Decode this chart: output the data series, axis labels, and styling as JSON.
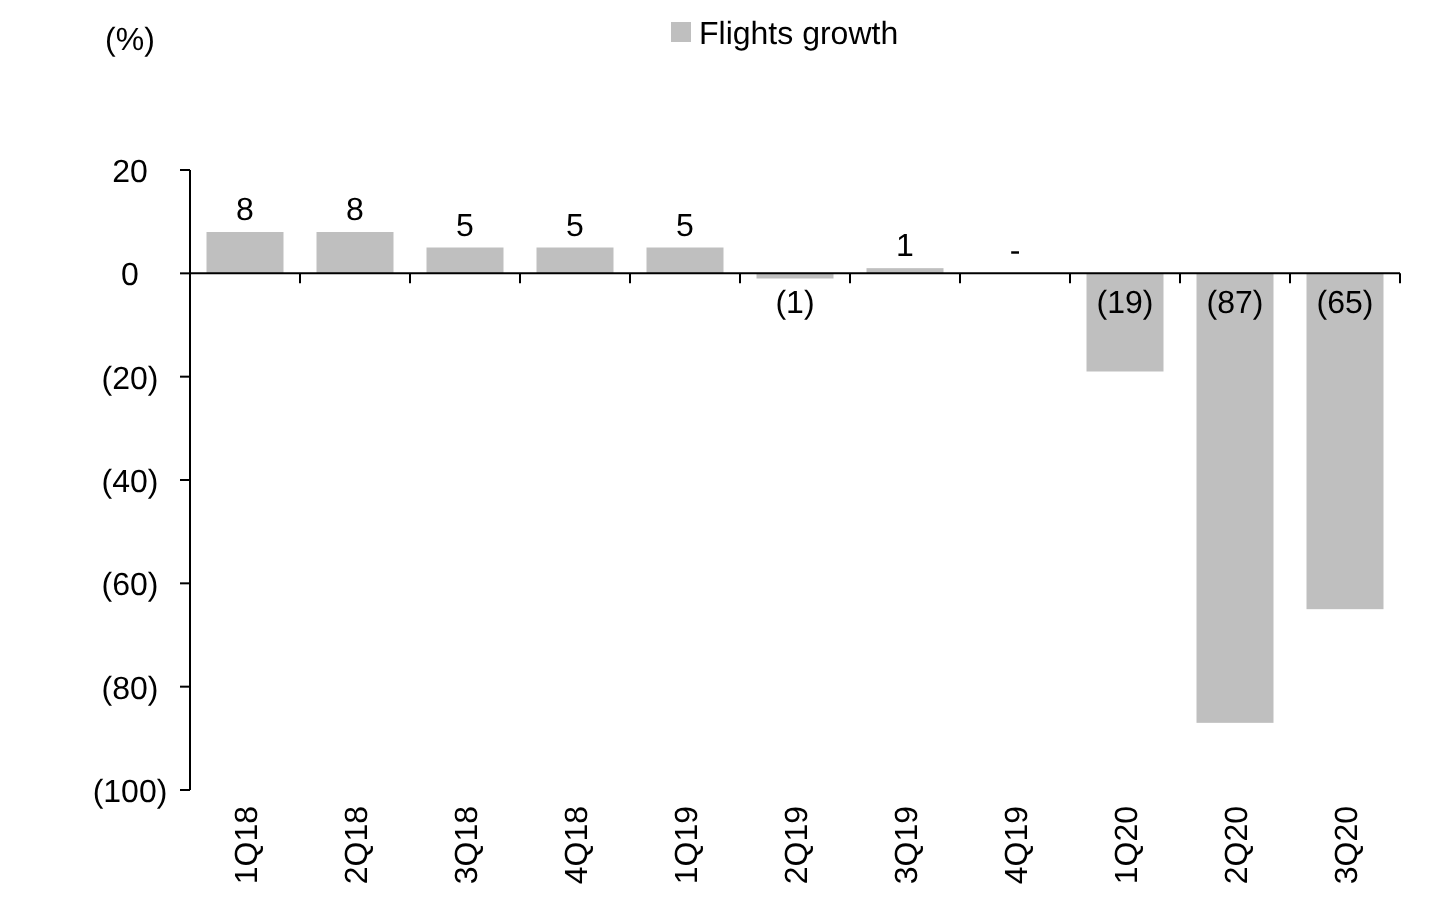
{
  "chart_data": {
    "type": "bar",
    "ylabel": "(%)",
    "categories": [
      "1Q18",
      "2Q18",
      "3Q18",
      "4Q18",
      "1Q19",
      "2Q19",
      "3Q19",
      "4Q19",
      "1Q20",
      "2Q20",
      "3Q20"
    ],
    "series": [
      {
        "name": "Flights growth",
        "color": "#bfbfbf",
        "values": [
          8,
          8,
          5,
          5,
          5,
          -1,
          1,
          0,
          -19,
          -87,
          -65
        ],
        "value_labels": [
          "8",
          "8",
          "5",
          "5",
          "5",
          "(1)",
          "1",
          "-",
          "(19)",
          "(87)",
          "(65)"
        ]
      }
    ],
    "ylim": [
      -100,
      20
    ],
    "yticks": [
      20,
      0,
      {
        "value": -20,
        "label": "(20)"
      },
      {
        "value": -40,
        "label": "(40)"
      },
      {
        "value": -60,
        "label": "(60)"
      },
      {
        "value": -80,
        "label": "(80)"
      },
      {
        "value": -100,
        "label": "(100)"
      }
    ],
    "legend": "top"
  }
}
